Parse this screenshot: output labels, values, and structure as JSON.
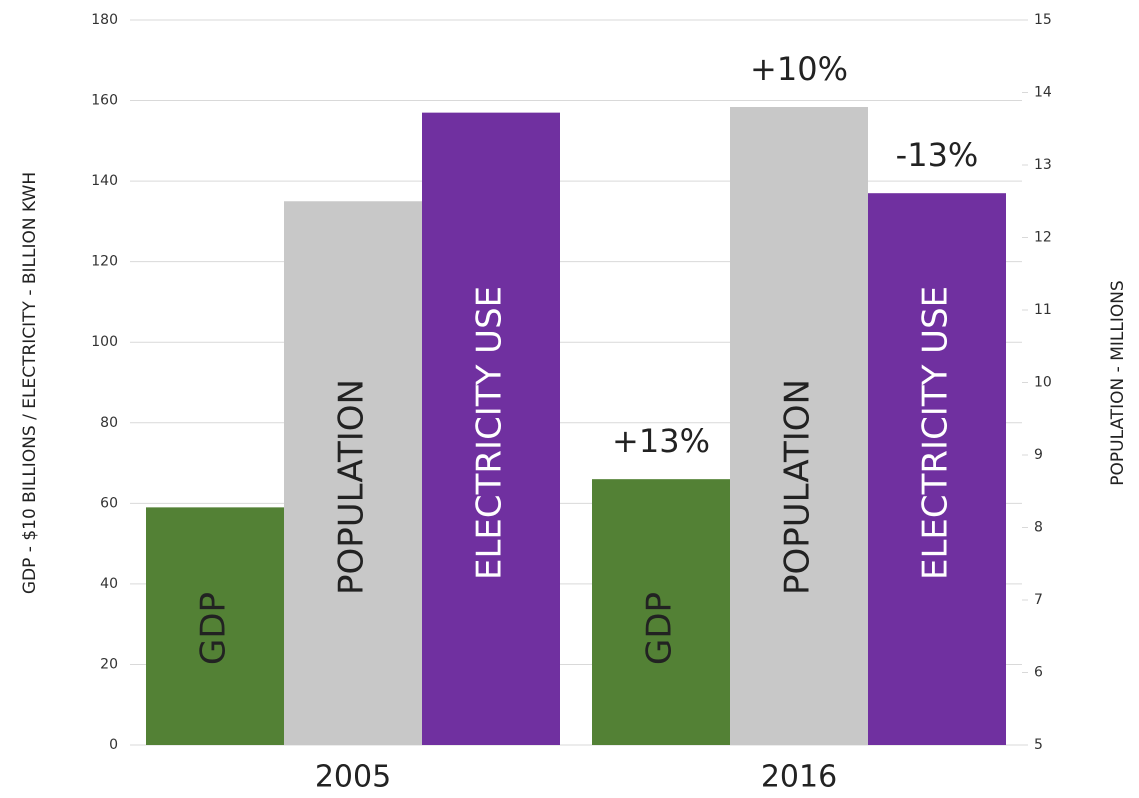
{
  "chart_data": {
    "type": "bar",
    "categories": [
      "2005",
      "2016"
    ],
    "series": [
      {
        "name": "GDP",
        "color": "#538135",
        "values": [
          59,
          66
        ],
        "annotations": [
          null,
          "+13%"
        ]
      },
      {
        "name": "POPULATION",
        "color": "#c8c8c8",
        "values": [
          12.5,
          13.8
        ],
        "axis": "y2",
        "annotations": [
          null,
          "+10%"
        ]
      },
      {
        "name": "ELECTRICITY USE",
        "color": "#7030a0",
        "values": [
          157,
          137
        ],
        "annotations": [
          null,
          "-13%"
        ]
      }
    ],
    "ylabel": "GDP - $10 BILLIONS / ELECTRICITY -  BILLION KWH",
    "y2label": "POPULATION - MILLIONS",
    "ylim": [
      0,
      180
    ],
    "yticks": [
      0,
      20,
      40,
      60,
      80,
      100,
      120,
      140,
      160,
      180
    ],
    "y2lim": [
      5,
      15
    ],
    "y2ticks": [
      5,
      6,
      7,
      8,
      9,
      10,
      11,
      12,
      13,
      14,
      15
    ],
    "grid": true
  }
}
